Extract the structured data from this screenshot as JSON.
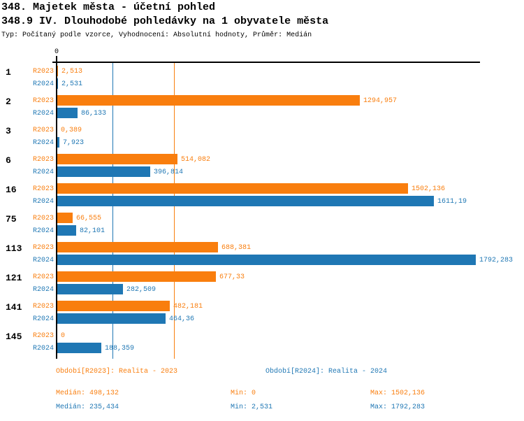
{
  "header": {
    "title_line1": "348. Majetek města - účetní pohled",
    "title_line2": "348.9 IV. Dlouhodobé pohledávky na 1 obyvatele města",
    "subtitle": "Typ: Počítaný podle vzorce, Vyhodnocení: Absolutní hodnoty, Průměr: Medián"
  },
  "colors": {
    "r2023": "#f97e0e",
    "r2024": "#1f77b4",
    "axis": "#000000"
  },
  "chart_data": {
    "type": "bar",
    "orientation": "horizontal",
    "title": "348.9 IV. Dlouhodobé pohledávky na 1 obyvatele města",
    "grid": false,
    "legend_position": "bottom",
    "axis": {
      "zero_label": "0"
    },
    "xlim": [
      0,
      1806
    ],
    "categories": [
      "1",
      "2",
      "3",
      "6",
      "16",
      "75",
      "113",
      "121",
      "141",
      "145"
    ],
    "series": [
      {
        "name": "R2023",
        "color": "#f97e0e",
        "values": [
          2.513,
          1294.957,
          0.389,
          514.082,
          1502.136,
          66.555,
          688.381,
          677.33,
          482.181,
          0
        ],
        "labels": [
          "2,513",
          "1294,957",
          "0,389",
          "514,082",
          "1502,136",
          "66,555",
          "688,381",
          "677,33",
          "482,181",
          "0"
        ]
      },
      {
        "name": "R2024",
        "color": "#1f77b4",
        "values": [
          2.531,
          86.133,
          7.923,
          396.814,
          1611.19,
          82.101,
          1792.283,
          282.509,
          464.36,
          188.359
        ],
        "labels": [
          "2,531",
          "86,133",
          "7,923",
          "396,814",
          "1611,19",
          "82,101",
          "1792,283",
          "282,509",
          "464,36",
          "188,359"
        ]
      }
    ],
    "reference_lines": [
      {
        "series": "R2023",
        "label": "Medián",
        "value": 498.132,
        "color": "#f97e0e"
      },
      {
        "series": "R2024",
        "label": "Medián",
        "value": 235.434,
        "color": "#1f77b4"
      }
    ]
  },
  "footer": {
    "legend_r2023": "Období[R2023]: Realita - 2023",
    "legend_r2024": "Období[R2024]: Realita - 2024",
    "stats_r2023": {
      "median": "Medián: 498,132",
      "min": "Min: 0",
      "max": "Max: 1502,136"
    },
    "stats_r2024": {
      "median": "Medián: 235,434",
      "min": "Min: 2,531",
      "max": "Max: 1792,283"
    }
  }
}
